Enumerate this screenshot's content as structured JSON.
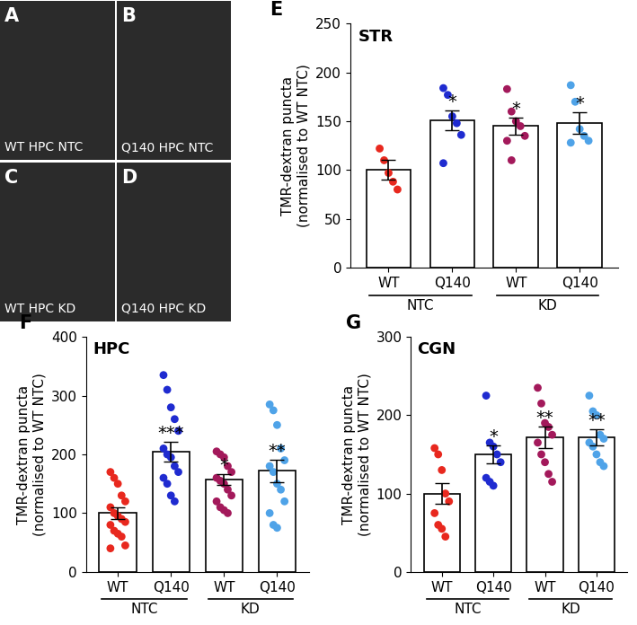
{
  "image_panels": [
    {
      "letter": "A",
      "label": "WT HPC NTC"
    },
    {
      "letter": "B",
      "label": "Q140 HPC NTC"
    },
    {
      "letter": "C",
      "label": "WT HPC KD"
    },
    {
      "letter": "D",
      "label": "Q140 HPC KD"
    }
  ],
  "chart_data": [
    {
      "type": "bar",
      "letter": "E",
      "title": "STR",
      "y_label": "TMR-dextran puncta\n(normalised to WT NTC)",
      "categories": [
        "WT",
        "Q140",
        "WT",
        "Q140"
      ],
      "groups": [
        {
          "name": "NTC",
          "size": 2
        },
        {
          "name": "KD",
          "size": 2
        }
      ],
      "values": [
        100,
        151,
        145,
        148
      ],
      "errors": [
        10,
        10,
        9,
        11
      ],
      "colors": [
        "#e8281e",
        "#1f2bd0",
        "#a3195b",
        "#4fa3e8"
      ],
      "points": [
        [
          122,
          110,
          97,
          88,
          80
        ],
        [
          184,
          177,
          155,
          148,
          136,
          107
        ],
        [
          183,
          160,
          150,
          145,
          135,
          130,
          110
        ],
        [
          187,
          170,
          142,
          135,
          130,
          128
        ]
      ],
      "significance": [
        null,
        "*",
        "*",
        "*"
      ],
      "ylim": [
        0,
        250
      ],
      "yticks": [
        0,
        50,
        100,
        150,
        200,
        250
      ]
    },
    {
      "type": "bar",
      "letter": "F",
      "title": "HPC",
      "y_label": "TMR-dextran puncta\n(normalised to WT NTC)",
      "categories": [
        "WT",
        "Q140",
        "WT",
        "Q140"
      ],
      "groups": [
        {
          "name": "NTC",
          "size": 2
        },
        {
          "name": "KD",
          "size": 2
        }
      ],
      "values": [
        100,
        205,
        157,
        172
      ],
      "errors": [
        10,
        17,
        9,
        19
      ],
      "colors": [
        "#e8281e",
        "#1f2bd0",
        "#a3195b",
        "#4fa3e8"
      ],
      "points": [
        [
          170,
          160,
          150,
          130,
          120,
          110,
          100,
          95,
          90,
          85,
          80,
          70,
          65,
          60,
          45,
          40
        ],
        [
          335,
          310,
          280,
          260,
          240,
          210,
          200,
          195,
          180,
          170,
          160,
          150,
          130,
          120
        ],
        [
          205,
          200,
          195,
          180,
          170,
          160,
          155,
          150,
          140,
          130,
          120,
          110,
          105,
          100
        ],
        [
          285,
          275,
          250,
          210,
          190,
          180,
          170,
          150,
          140,
          120,
          100,
          80,
          75
        ]
      ],
      "significance": [
        null,
        "***",
        "*",
        "**"
      ],
      "ylim": [
        0,
        400
      ],
      "yticks": [
        0,
        100,
        200,
        300,
        400
      ]
    },
    {
      "type": "bar",
      "letter": "G",
      "title": "CGN",
      "y_label": "TMR-dextran puncta\n(normalised to WT NTC)",
      "categories": [
        "WT",
        "Q140",
        "WT",
        "Q140"
      ],
      "groups": [
        {
          "name": "NTC",
          "size": 2
        },
        {
          "name": "KD",
          "size": 2
        }
      ],
      "values": [
        100,
        150,
        172,
        172
      ],
      "errors": [
        13,
        12,
        14,
        10
      ],
      "colors": [
        "#e8281e",
        "#1f2bd0",
        "#a3195b",
        "#4fa3e8"
      ],
      "points": [
        [
          158,
          150,
          130,
          100,
          90,
          75,
          60,
          55,
          45
        ],
        [
          225,
          165,
          160,
          150,
          140,
          120,
          115,
          110
        ],
        [
          235,
          215,
          190,
          185,
          175,
          165,
          150,
          140,
          125,
          115
        ],
        [
          225,
          205,
          200,
          175,
          170,
          165,
          160,
          150,
          140,
          135
        ]
      ],
      "significance": [
        null,
        "*",
        "**",
        "**"
      ],
      "ylim": [
        0,
        300
      ],
      "yticks": [
        0,
        100,
        200,
        300
      ]
    }
  ]
}
